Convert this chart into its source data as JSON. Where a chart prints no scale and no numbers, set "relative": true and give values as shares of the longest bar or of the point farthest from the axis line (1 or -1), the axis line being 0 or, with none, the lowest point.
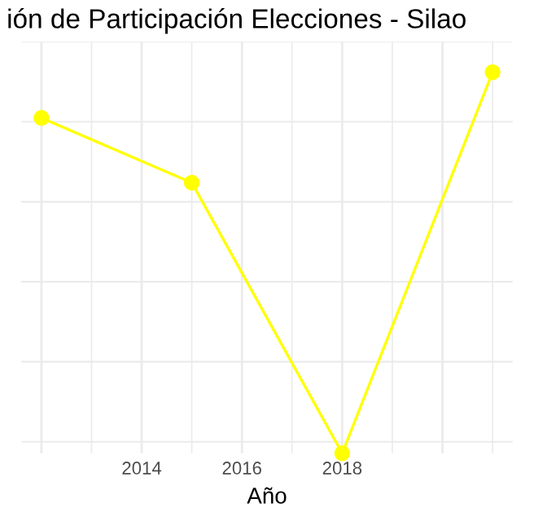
{
  "chart_data": {
    "type": "line",
    "title": "ión de Participación Elecciones - Silao",
    "xlabel": "Año",
    "x": [
      2012,
      2015,
      2018,
      2021
    ],
    "relative": true,
    "values": [
      0.88,
      0.71,
      0,
      1
    ],
    "color": "#ffff00",
    "xlim": [
      2011.6,
      2021.4
    ],
    "xticks": [
      2014,
      2016,
      2018
    ],
    "grid": true,
    "marker": "circle",
    "line_style": "solid",
    "tick_labels": "x"
  }
}
